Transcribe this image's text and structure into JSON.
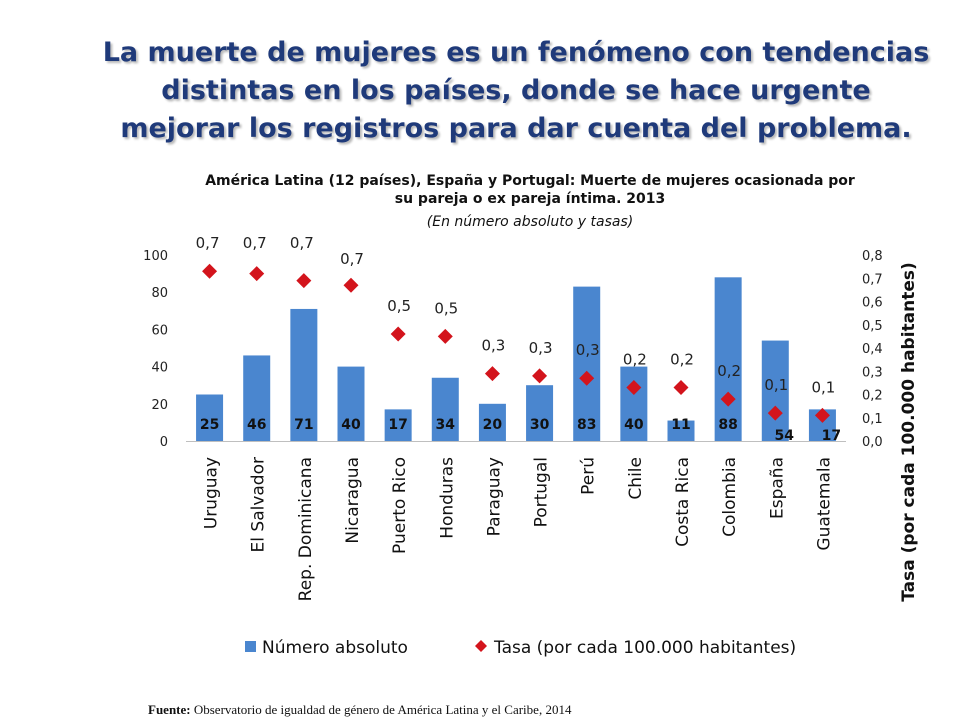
{
  "headline": "La muerte de mujeres es un fenómeno con tendencias distintas en los países, donde se hace urgente mejorar los registros para dar cuenta del problema.",
  "subtitle_line1": "América Latina (12 países), España y Portugal: Muerte de mujeres ocasionada por",
  "subtitle_line2": "su pareja o ex pareja íntima. 2013",
  "subtitle_line3": "(En número absoluto y tasas)",
  "source_label": "Fuente:",
  "source_text": "Observatorio de igualdad de género de América Latina y el  Caribe, 2014",
  "colors": {
    "bar": "#4a86cf",
    "marker": "#d3141c",
    "title": "#1f3a7a"
  },
  "chart_data": {
    "type": "bar",
    "categories": [
      "Uruguay",
      "El Salvador",
      "Rep. Dominicana",
      "Nicaragua",
      "Puerto Rico",
      "Honduras",
      "Paraguay",
      "Portugal",
      "Perú",
      "Chile",
      "Costa Rica",
      "Colombia",
      "España",
      "Guatemala"
    ],
    "series": [
      {
        "name": "Número absoluto",
        "type": "bar",
        "axis": "left",
        "values": [
          25,
          46,
          71,
          40,
          17,
          34,
          20,
          30,
          83,
          40,
          11,
          88,
          54,
          17
        ],
        "labels": [
          "25",
          "46",
          "71",
          "40",
          "17",
          "34",
          "20",
          "30",
          "83",
          "40",
          "11",
          "88",
          "54",
          "17"
        ]
      },
      {
        "name": "Tasa (por cada 100.000 habitantes)",
        "type": "scatter",
        "axis": "right",
        "marker": "diamond",
        "values": [
          0.73,
          0.72,
          0.69,
          0.67,
          0.46,
          0.45,
          0.29,
          0.28,
          0.27,
          0.23,
          0.23,
          0.18,
          0.12,
          0.11
        ],
        "labels": [
          "0,7",
          "0,7",
          "0,7",
          "0,7",
          "0,5",
          "0,5",
          "0,3",
          "0,3",
          "0,3",
          "0,2",
          "0,2",
          "0,2",
          "0,1",
          "0,1"
        ]
      }
    ],
    "ylim_left": [
      0,
      100
    ],
    "yticks_left": [
      "0",
      "20",
      "40",
      "60",
      "80",
      "100"
    ],
    "ylim_right": [
      0,
      0.8
    ],
    "yticks_right": [
      "0,0",
      "0,1",
      "0,2",
      "0,3",
      "0,4",
      "0,5",
      "0,6",
      "0,7",
      "0,8"
    ],
    "ylabel_right": "Tasa (por cada 100.000 habitantes)",
    "grid": false,
    "legend_position": "bottom"
  }
}
